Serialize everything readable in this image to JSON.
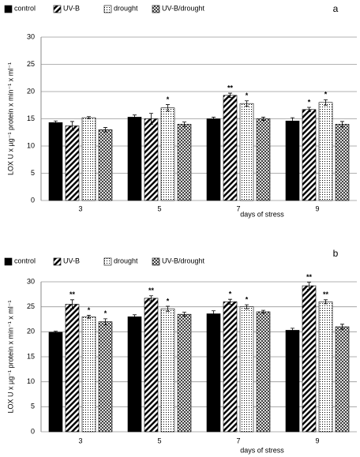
{
  "chart_data": [
    {
      "type": "bar",
      "panel_label": "a",
      "x_label": "days of stress",
      "y_label": "LOX U x µg⁻¹ protein x min⁻¹ x ml⁻¹",
      "categories": [
        "3",
        "5",
        "7",
        "9"
      ],
      "ylim": [
        0,
        30
      ],
      "yticks": [
        0,
        5,
        10,
        15,
        20,
        25,
        30
      ],
      "grid": true,
      "series": [
        {
          "name": "control",
          "color": "#000000",
          "pattern": "solid",
          "values": [
            14.3,
            15.3,
            15.0,
            14.6
          ],
          "errors": [
            0.3,
            0.4,
            0.3,
            0.6
          ],
          "significance": [
            null,
            null,
            null,
            null
          ]
        },
        {
          "name": "UV-B",
          "color": "#000000",
          "pattern": "diagonal",
          "values": [
            13.7,
            15.0,
            19.3,
            16.7
          ],
          "errors": [
            0.8,
            1.0,
            0.4,
            0.4
          ],
          "significance": [
            null,
            null,
            "**",
            "*"
          ]
        },
        {
          "name": "drought",
          "color": "#000000",
          "pattern": "dots",
          "values": [
            15.2,
            17.0,
            17.8,
            18.0
          ],
          "errors": [
            0.2,
            0.6,
            0.5,
            0.5
          ],
          "significance": [
            null,
            "*",
            "*",
            "*"
          ]
        },
        {
          "name": "UV-B/drought",
          "color": "#000000",
          "pattern": "crosshatch",
          "values": [
            13.0,
            14.0,
            15.0,
            14.0
          ],
          "errors": [
            0.4,
            0.4,
            0.3,
            0.5
          ],
          "significance": [
            null,
            null,
            null,
            null
          ]
        }
      ]
    },
    {
      "type": "bar",
      "panel_label": "b",
      "x_label": "days of stress",
      "y_label": "LOX U x µg⁻¹ protein x min⁻¹ x ml⁻¹",
      "categories": [
        "3",
        "5",
        "7",
        "9"
      ],
      "ylim": [
        0,
        30
      ],
      "yticks": [
        0,
        5,
        10,
        15,
        20,
        25,
        30
      ],
      "grid": true,
      "series": [
        {
          "name": "control",
          "color": "#000000",
          "pattern": "solid",
          "values": [
            19.9,
            23.0,
            23.6,
            20.3
          ],
          "errors": [
            0.2,
            0.4,
            0.6,
            0.4
          ],
          "significance": [
            null,
            null,
            null,
            null
          ]
        },
        {
          "name": "UV-B",
          "color": "#000000",
          "pattern": "diagonal",
          "values": [
            25.5,
            26.7,
            26.0,
            29.2
          ],
          "errors": [
            0.9,
            0.5,
            0.5,
            0.7
          ],
          "significance": [
            "**",
            "**",
            "*",
            "**"
          ]
        },
        {
          "name": "drought",
          "color": "#000000",
          "pattern": "dots",
          "values": [
            23.0,
            24.6,
            25.0,
            26.0
          ],
          "errors": [
            0.3,
            0.5,
            0.4,
            0.4
          ],
          "significance": [
            "*",
            "*",
            "*",
            "**"
          ]
        },
        {
          "name": "UV-B/drought",
          "color": "#000000",
          "pattern": "crosshatch",
          "values": [
            22.0,
            23.5,
            24.0,
            21.0
          ],
          "errors": [
            0.6,
            0.4,
            0.3,
            0.5
          ],
          "significance": [
            "*",
            null,
            null,
            null
          ]
        }
      ]
    }
  ]
}
